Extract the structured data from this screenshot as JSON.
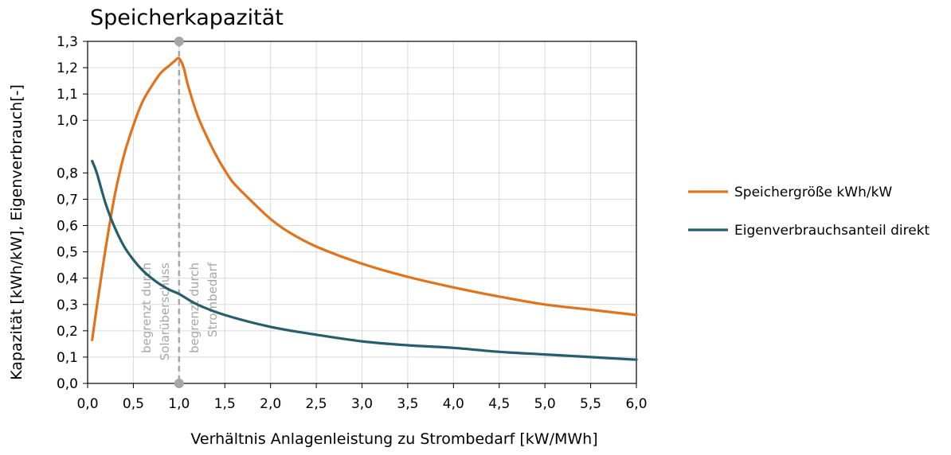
{
  "chart_data": {
    "type": "line",
    "title": "Speicherkapazität",
    "xlabel": "Verhältnis Anlagenleistung zu Strombedarf [kW/MWh]",
    "ylabel": "Kapazität [kWh/kW], Eigenverbrauch[-]",
    "xlim": [
      0,
      6
    ],
    "ylim": [
      0,
      1.3
    ],
    "x_ticks": [
      "0,0",
      "0,5",
      "1,0",
      "1,5",
      "2,0",
      "2,5",
      "3,0",
      "3,5",
      "4,0",
      "4,5",
      "5,0",
      "5,5",
      "6,0"
    ],
    "y_ticks": [
      "0,0",
      "0,1",
      "0,2",
      "0,3",
      "0,4",
      "0,5",
      "0,6",
      "0,7",
      "0,8",
      "1,0",
      "1,1",
      "1,2",
      "1,3"
    ],
    "grid": true,
    "legend_position": "right",
    "series": [
      {
        "name": "Speichergröße kWh/kW",
        "color": "#e2731b",
        "x": [
          0.05,
          0.1,
          0.2,
          0.3,
          0.4,
          0.5,
          0.6,
          0.7,
          0.8,
          0.9,
          0.95,
          1.0,
          1.05,
          1.1,
          1.2,
          1.3,
          1.4,
          1.5,
          1.6,
          1.8,
          2.0,
          2.2,
          2.5,
          3.0,
          3.5,
          4.0,
          4.5,
          5.0,
          5.5,
          6.0
        ],
        "y": [
          0.165,
          0.29,
          0.52,
          0.72,
          0.87,
          0.98,
          1.07,
          1.13,
          1.18,
          1.21,
          1.225,
          1.235,
          1.2,
          1.13,
          1.02,
          0.94,
          0.87,
          0.81,
          0.76,
          0.69,
          0.625,
          0.575,
          0.52,
          0.455,
          0.405,
          0.365,
          0.33,
          0.3,
          0.28,
          0.26
        ]
      },
      {
        "name": "Eigenverbrauchsanteil direkt",
        "color": "#265e6e",
        "x": [
          0.05,
          0.1,
          0.2,
          0.3,
          0.4,
          0.5,
          0.6,
          0.7,
          0.8,
          0.9,
          1.0,
          1.2,
          1.5,
          2.0,
          2.5,
          3.0,
          3.5,
          4.0,
          4.5,
          5.0,
          5.5,
          6.0
        ],
        "y": [
          0.845,
          0.8,
          0.68,
          0.59,
          0.52,
          0.47,
          0.43,
          0.4,
          0.375,
          0.355,
          0.34,
          0.3,
          0.26,
          0.215,
          0.185,
          0.16,
          0.145,
          0.135,
          0.12,
          0.11,
          0.1,
          0.09
        ]
      }
    ],
    "annotations": {
      "marker_x": 1.0,
      "left_region": [
        "begrenzt durch",
        "Solarüberschuss"
      ],
      "right_region": [
        "begrenzt durch",
        "Strombedarf"
      ]
    }
  }
}
